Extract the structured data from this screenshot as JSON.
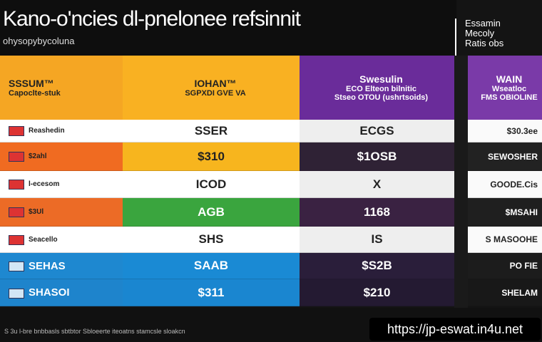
{
  "header": {
    "title": "Kano-o'ncies dl-pnelonee refsinnit",
    "subtitle": "ohysopybycoluna"
  },
  "corner_box": {
    "lines": [
      "Essamin",
      "Mecoly",
      "Ratis obs"
    ]
  },
  "table": {
    "columns": [
      {
        "lines": [
          "SSSUM™",
          "Capoclte-stuk"
        ]
      },
      {
        "lines": [
          "IOHAN™",
          "SGPXDI GVE VA"
        ]
      },
      {
        "lines": [
          "Swesulin",
          "ECO Elteon bilnitic",
          "Stseo OTOU (ushrtsoids)"
        ]
      },
      {
        "lines": [
          "WAIN",
          "Wseatloc",
          "FMS OBIOLINE"
        ]
      }
    ],
    "rows": [
      [
        "Reashedin",
        "SSER",
        "ECGS",
        "$30.3ee"
      ],
      [
        "$2ahl",
        "$310",
        "$1OSB",
        "SEWOSHER"
      ],
      [
        "l-ecesom",
        "ICOD",
        "X",
        "GOODE.Cis"
      ],
      [
        "$3Ul",
        "AGB",
        "1168",
        "$MSAHI"
      ],
      [
        "Seacello",
        "SHS",
        "IS",
        "S MASOOHE"
      ],
      [
        "SEHAS",
        "SAAB",
        "$S2B",
        "PO FIE"
      ],
      [
        "SHASOI",
        "$311",
        "$210",
        "SHELAM"
      ]
    ]
  },
  "footer": {
    "text": "S 3u l-bre bnbbasls sbtbtor Sbloeerte iteoatns stamcsle sloakcn",
    "watermark": "https://jp-eswat.in4u.net"
  }
}
